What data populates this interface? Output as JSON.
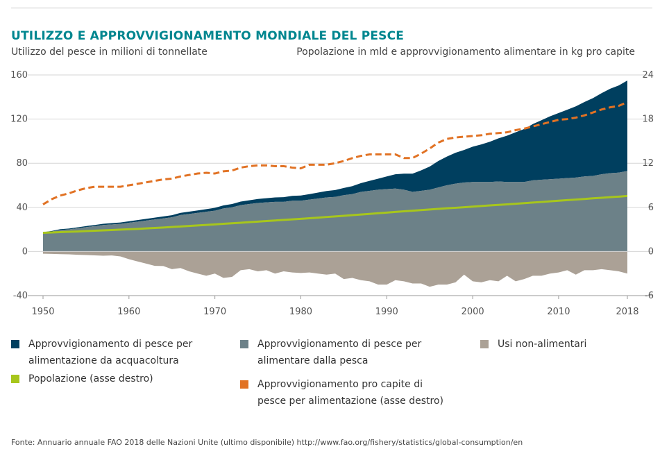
{
  "header": {
    "title": "UTILIZZO E APPROVVIGIONAMENTO MONDIALE DEL PESCE",
    "left_axis_label": "Utilizzo del pesce in milioni di tonnellate",
    "right_axis_label": "Popolazione in mld e approvvigionamento alimentare in kg pro capite"
  },
  "legend": {
    "aquaculture_line1": "Approvvigionamento di pesce per",
    "aquaculture_line2": "alimentazione da acquacoltura",
    "capture_line1": "Approvvigionamento di pesce per",
    "capture_line2": "alimentare dalla pesca",
    "nonfood": "Usi non-alimentari",
    "population": "Popolazione (asse destro)",
    "percapita_line1": "Approvvigionamento pro capite di",
    "percapita_line2": "pesce per alimentazione (asse destro)"
  },
  "colors": {
    "aquaculture": "#003f5f",
    "capture": "#6c8188",
    "nonfood": "#aba196",
    "population": "#a7c61c",
    "percapita": "#e17224"
  },
  "source": "Fonte: Annuario annuale FAO 2018 delle Nazioni Unite (ultimo disponibile) http://www.fao.org/fishery/statistics/global-consumption/en",
  "chart_data": {
    "type": "area",
    "title": "UTILIZZO E APPROVVIGIONAMENTO MONDIALE DEL PESCE",
    "xlabel": "",
    "ylabel": "Utilizzo del pesce in milioni di tonnellate",
    "y2label": "Popolazione in mld e approvvigionamento alimentare in kg pro capite",
    "xlim": [
      1950,
      2018
    ],
    "ylim": [
      -40,
      160
    ],
    "y2lim": [
      -6,
      24
    ],
    "x_ticks": [
      1950,
      1960,
      1970,
      1980,
      1990,
      2000,
      2010,
      2018
    ],
    "y_ticks": [
      160,
      120,
      80,
      40,
      0,
      -40
    ],
    "y2_ticks": [
      24,
      18,
      12,
      6,
      0,
      -6
    ],
    "grid": true,
    "legend_position": "bottom",
    "x": [
      1950,
      1951,
      1952,
      1953,
      1954,
      1955,
      1956,
      1957,
      1958,
      1959,
      1960,
      1961,
      1962,
      1963,
      1964,
      1965,
      1966,
      1967,
      1968,
      1969,
      1970,
      1971,
      1972,
      1973,
      1974,
      1975,
      1976,
      1977,
      1978,
      1979,
      1980,
      1981,
      1982,
      1983,
      1984,
      1985,
      1986,
      1987,
      1988,
      1989,
      1990,
      1991,
      1992,
      1993,
      1994,
      1995,
      1996,
      1997,
      1998,
      1999,
      2000,
      2001,
      2002,
      2003,
      2004,
      2005,
      2006,
      2007,
      2008,
      2009,
      2010,
      2011,
      2012,
      2013,
      2014,
      2015,
      2016,
      2017,
      2018
    ],
    "series": [
      {
        "name": "Approvvigionamento di pesce per alimentare dalla pesca",
        "axis": "left",
        "values": [
          17,
          18,
          19.5,
          20,
          21,
          22,
          23,
          24,
          24.5,
          25,
          26,
          27,
          28,
          29,
          30,
          31,
          33,
          34,
          35,
          36,
          37,
          39,
          40,
          42,
          43,
          44,
          44.5,
          45,
          45,
          46,
          46,
          47,
          48,
          49,
          49.5,
          51,
          52,
          54,
          55,
          56,
          56.5,
          57,
          56,
          54,
          55,
          56,
          58,
          60,
          61.5,
          62.5,
          63,
          63,
          63,
          63.5,
          63,
          63,
          63,
          64.5,
          65,
          65.5,
          66,
          66.5,
          67,
          68,
          68.5,
          70,
          71,
          71.5,
          73
        ]
      },
      {
        "name": "Approvvigionamento di pesce per alimentazione da acquacoltura",
        "axis": "left",
        "stacked_on": "Approvvigionamento di pesce per alimentare dalla pesca",
        "values": [
          0.5,
          0.6,
          0.7,
          0.8,
          0.9,
          1,
          1,
          1.1,
          1.2,
          1.3,
          1.4,
          1.5,
          1.6,
          1.7,
          1.8,
          1.9,
          2,
          2.1,
          2.2,
          2.4,
          2.6,
          2.8,
          3,
          3.2,
          3.4,
          3.6,
          3.8,
          4,
          4.2,
          4.4,
          4.7,
          5,
          5.4,
          5.8,
          6.2,
          6.6,
          7.2,
          8,
          9,
          10,
          11.5,
          13,
          14.5,
          16.5,
          18.5,
          21,
          24,
          26,
          28,
          29.5,
          32,
          34,
          36.5,
          39,
          42,
          45,
          48,
          51,
          54,
          57,
          59.5,
          62,
          64.5,
          67.5,
          70.5,
          73.5,
          76.5,
          79,
          82
        ]
      },
      {
        "name": "Usi non-alimentari",
        "axis": "left",
        "values": [
          -2,
          -2.2,
          -2.4,
          -2.6,
          -3,
          -3.2,
          -3.5,
          -3.8,
          -3.6,
          -4.5,
          -7,
          -9,
          -11,
          -13,
          -13.2,
          -16,
          -15,
          -18,
          -20,
          -22,
          -20,
          -24,
          -23,
          -17,
          -16,
          -18,
          -17,
          -20,
          -18,
          -19,
          -19.5,
          -19,
          -20,
          -21,
          -20,
          -25,
          -24,
          -26,
          -27,
          -30,
          -30,
          -26,
          -27,
          -29,
          -29,
          -32,
          -30,
          -30,
          -28,
          -21,
          -27,
          -28,
          -26,
          -27,
          -22,
          -27,
          -25,
          -22,
          -22,
          -20,
          -19,
          -17,
          -21,
          -17,
          -17,
          -16,
          -17,
          -18,
          -20
        ]
      },
      {
        "name": "Popolazione (asse destro)",
        "axis": "right",
        "values": [
          2.54,
          2.58,
          2.63,
          2.68,
          2.72,
          2.77,
          2.82,
          2.87,
          2.92,
          2.97,
          3.02,
          3.07,
          3.14,
          3.2,
          3.26,
          3.33,
          3.4,
          3.47,
          3.54,
          3.61,
          3.68,
          3.76,
          3.84,
          3.91,
          3.99,
          4.06,
          4.14,
          4.21,
          4.29,
          4.37,
          4.44,
          4.52,
          4.6,
          4.69,
          4.77,
          4.85,
          4.94,
          5.03,
          5.11,
          5.2,
          5.29,
          5.38,
          5.46,
          5.55,
          5.63,
          5.71,
          5.79,
          5.87,
          5.94,
          6.02,
          6.1,
          6.18,
          6.26,
          6.33,
          6.41,
          6.49,
          6.57,
          6.65,
          6.73,
          6.82,
          6.9,
          6.98,
          7.06,
          7.14,
          7.23,
          7.3,
          7.38,
          7.46,
          7.55
        ]
      },
      {
        "name": "Approvvigionamento pro capite di pesce per alimentazione (asse destro)",
        "axis": "right",
        "values": [
          6.4,
          7.1,
          7.6,
          7.9,
          8.3,
          8.6,
          8.8,
          8.8,
          8.8,
          8.8,
          9,
          9.2,
          9.4,
          9.6,
          9.8,
          9.9,
          10.2,
          10.4,
          10.6,
          10.7,
          10.6,
          10.9,
          11,
          11.4,
          11.6,
          11.7,
          11.7,
          11.6,
          11.6,
          11.4,
          11.3,
          11.8,
          11.8,
          11.8,
          12,
          12.3,
          12.7,
          13,
          13.2,
          13.2,
          13.2,
          13.2,
          12.7,
          12.7,
          13.3,
          14,
          14.8,
          15.3,
          15.5,
          15.6,
          15.7,
          15.8,
          16,
          16.1,
          16.2,
          16.5,
          16.7,
          17,
          17.3,
          17.6,
          17.9,
          18,
          18.2,
          18.5,
          18.9,
          19.3,
          19.6,
          19.8,
          20.3
        ]
      }
    ]
  }
}
